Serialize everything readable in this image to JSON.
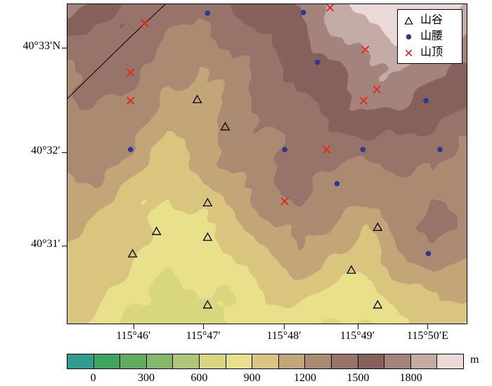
{
  "axes": {
    "y_ticks": [
      {
        "label": "40°33′N",
        "pos": 0.138
      },
      {
        "label": "40°32′",
        "pos": 0.466
      },
      {
        "label": "40°31′",
        "pos": 0.759
      }
    ],
    "x_ticks": [
      {
        "label": "115°46′",
        "pos": 0.167
      },
      {
        "label": "115°47′",
        "pos": 0.342
      },
      {
        "label": "115°48′",
        "pos": 0.544
      },
      {
        "label": "115°49′",
        "pos": 0.728
      },
      {
        "label": "115°50′E",
        "pos": 0.904
      }
    ]
  },
  "legend": {
    "items": [
      {
        "symbol": "triangle",
        "label": "山谷"
      },
      {
        "symbol": "dot",
        "label": "山腰"
      },
      {
        "symbol": "cross",
        "label": "山顶"
      }
    ]
  },
  "colorbar": {
    "unit": "m",
    "tick_labels": [
      "0",
      "300",
      "600",
      "900",
      "1200",
      "1500",
      "1800"
    ],
    "segment_meters": 150,
    "min_value": -150,
    "palette": [
      "#2f9e8e",
      "#3fa45e",
      "#5ead60",
      "#84b96b",
      "#aec676",
      "#d8d67f",
      "#e8e08a",
      "#d9c57e",
      "#c2a678",
      "#ab8a72",
      "#977369",
      "#86605a",
      "#a3837c",
      "#c5aba5",
      "#ead9d6"
    ]
  },
  "markers": {
    "valley": {
      "label": "山谷",
      "color": "#000000",
      "points": [
        [
          0.325,
          0.298
        ],
        [
          0.395,
          0.383
        ],
        [
          0.351,
          0.621
        ],
        [
          0.223,
          0.711
        ],
        [
          0.351,
          0.729
        ],
        [
          0.777,
          0.698
        ],
        [
          0.163,
          0.781
        ],
        [
          0.711,
          0.832
        ],
        [
          0.351,
          0.941
        ],
        [
          0.777,
          0.941
        ]
      ]
    },
    "slope": {
      "label": "山腰",
      "color": "#2b3a8f",
      "points": [
        [
          0.351,
          0.028
        ],
        [
          0.591,
          0.026
        ],
        [
          0.626,
          0.182
        ],
        [
          0.898,
          0.302
        ],
        [
          0.158,
          0.455
        ],
        [
          0.544,
          0.455
        ],
        [
          0.74,
          0.455
        ],
        [
          0.933,
          0.455
        ],
        [
          0.675,
          0.562
        ],
        [
          0.904,
          0.781
        ]
      ]
    },
    "peak": {
      "label": "山顶",
      "color": "#e2281e",
      "points": [
        [
          0.193,
          0.059
        ],
        [
          0.658,
          0.011
        ],
        [
          0.746,
          0.142
        ],
        [
          0.158,
          0.214
        ],
        [
          0.158,
          0.302
        ],
        [
          0.775,
          0.267
        ],
        [
          0.742,
          0.302
        ],
        [
          0.649,
          0.455
        ],
        [
          0.544,
          0.617
        ]
      ]
    }
  },
  "boundary_line": {
    "points": [
      [
        0.0,
        0.295
      ],
      [
        0.16,
        0.1
      ],
      [
        0.245,
        0.0
      ]
    ]
  },
  "chart_data": {
    "type": "heatmap",
    "title": "",
    "legend_position": "top-right",
    "value_unit": "m",
    "band_interval_m": 150,
    "grid_elevation_m": [
      [
        1700,
        1600,
        1500,
        1450,
        1400,
        1480,
        1560,
        1700,
        1900,
        2000,
        2120,
        2050,
        1950
      ],
      [
        1500,
        1500,
        1430,
        1350,
        1300,
        1400,
        1500,
        1600,
        1750,
        1900,
        2000,
        1950,
        1800
      ],
      [
        1400,
        1420,
        1380,
        1250,
        1200,
        1350,
        1450,
        1520,
        1600,
        1750,
        1850,
        1750,
        1600
      ],
      [
        1320,
        1360,
        1300,
        1120,
        1150,
        1300,
        1420,
        1480,
        1550,
        1700,
        1760,
        1600,
        1500
      ],
      [
        1260,
        1310,
        1240,
        1050,
        1100,
        1260,
        1360,
        1420,
        1500,
        1560,
        1500,
        1450,
        1400
      ],
      [
        1210,
        1260,
        1150,
        1000,
        1060,
        1210,
        1310,
        1460,
        1400,
        1350,
        1300,
        1360,
        1310
      ],
      [
        1160,
        1100,
        1000,
        900,
        950,
        1110,
        1260,
        1410,
        1300,
        1200,
        1260,
        1310,
        1260
      ],
      [
        1110,
        1000,
        900,
        800,
        860,
        1010,
        1160,
        1260,
        1150,
        1060,
        1310,
        1410,
        1310
      ],
      [
        1060,
        950,
        850,
        760,
        810,
        910,
        1060,
        1110,
        1000,
        960,
        1210,
        1310,
        1210
      ],
      [
        1010,
        900,
        800,
        710,
        730,
        810,
        910,
        960,
        860,
        810,
        1010,
        1110,
        1060
      ],
      [
        960,
        850,
        760,
        660,
        690,
        730,
        790,
        830,
        760,
        710,
        860,
        960,
        910
      ]
    ]
  }
}
